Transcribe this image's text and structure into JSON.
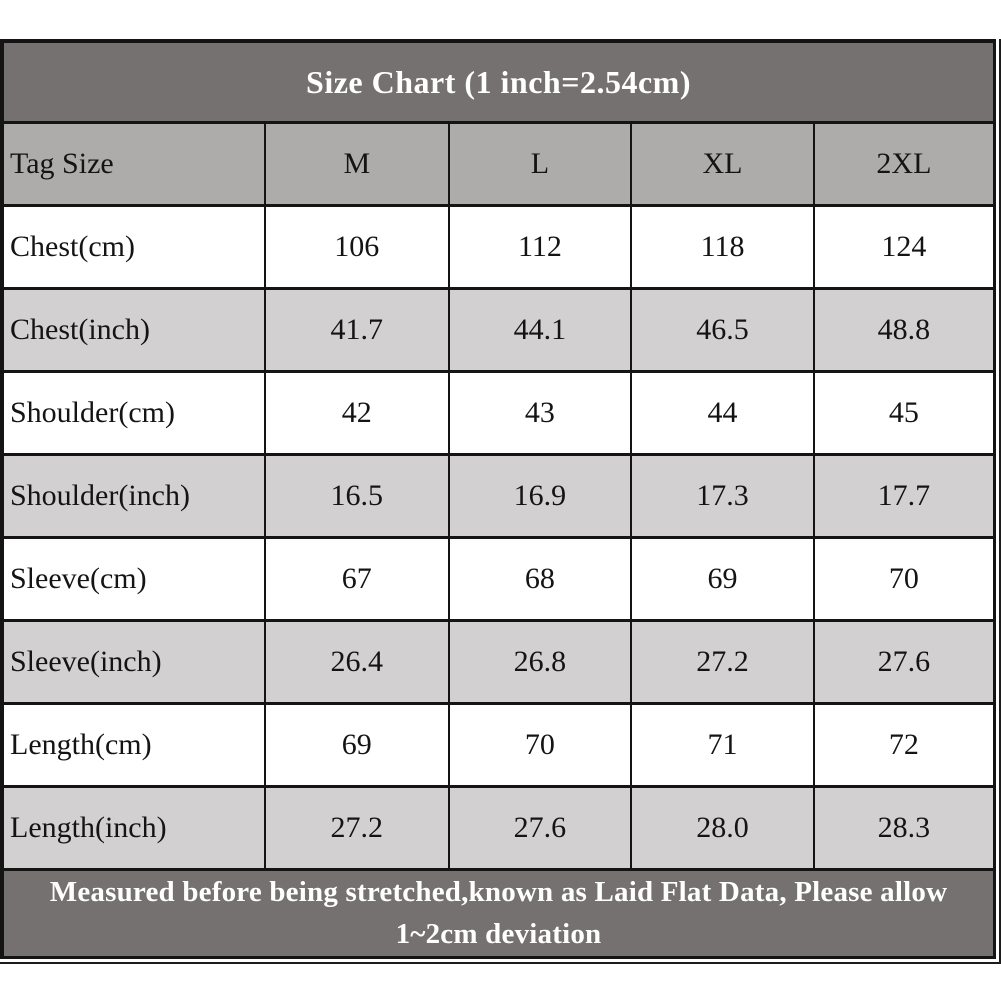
{
  "title": "Size Chart (1 inch=2.54cm)",
  "footer_note": "Measured before being stretched,known as Laid Flat Data, Please allow 1~2cm deviation",
  "table": {
    "header": [
      "Tag Size",
      "M",
      "L",
      "XL",
      "2XL"
    ],
    "rows": [
      {
        "label": "Chest(cm)",
        "values": [
          "106",
          "112",
          "118",
          "124"
        ]
      },
      {
        "label": "Chest(inch)",
        "values": [
          "41.7",
          "44.1",
          "46.5",
          "48.8"
        ]
      },
      {
        "label": "Shoulder(cm)",
        "values": [
          "42",
          "43",
          "44",
          "45"
        ]
      },
      {
        "label": "Shoulder(inch)",
        "values": [
          "16.5",
          "16.9",
          "17.3",
          "17.7"
        ]
      },
      {
        "label": "Sleeve(cm)",
        "values": [
          "67",
          "68",
          "69",
          "70"
        ]
      },
      {
        "label": "Sleeve(inch)",
        "values": [
          "26.4",
          "26.8",
          "27.2",
          "27.6"
        ]
      },
      {
        "label": "Length(cm)",
        "values": [
          "69",
          "70",
          "71",
          "72"
        ]
      },
      {
        "label": "Length(inch)",
        "values": [
          "27.2",
          "27.6",
          "28.0",
          "28.3"
        ]
      }
    ]
  },
  "colors": {
    "title_bar_bg": "#757171",
    "header_row_bg": "#aeabab",
    "alt_row_bg": "#d2d0d0",
    "row_bg": "#ffffff",
    "border": "#141414",
    "title_text": "#ffffff",
    "cell_text": "#141414"
  },
  "chart_data": {
    "type": "table",
    "title": "Size Chart (1 inch=2.54cm)",
    "columns": [
      "Tag Size",
      "M",
      "L",
      "XL",
      "2XL"
    ],
    "rows": [
      [
        "Chest(cm)",
        106,
        112,
        118,
        124
      ],
      [
        "Chest(inch)",
        41.7,
        44.1,
        46.5,
        48.8
      ],
      [
        "Shoulder(cm)",
        42,
        43,
        44,
        45
      ],
      [
        "Shoulder(inch)",
        16.5,
        16.9,
        17.3,
        17.7
      ],
      [
        "Sleeve(cm)",
        67,
        68,
        69,
        70
      ],
      [
        "Sleeve(inch)",
        26.4,
        26.8,
        27.2,
        27.6
      ],
      [
        "Length(cm)",
        69,
        70,
        71,
        72
      ],
      [
        "Length(inch)",
        27.2,
        27.6,
        28.0,
        28.3
      ]
    ],
    "note": "Measured before being stretched,known as Laid Flat Data, Please allow 1~2cm deviation",
    "unit_conversion": "1 inch = 2.54 cm"
  }
}
